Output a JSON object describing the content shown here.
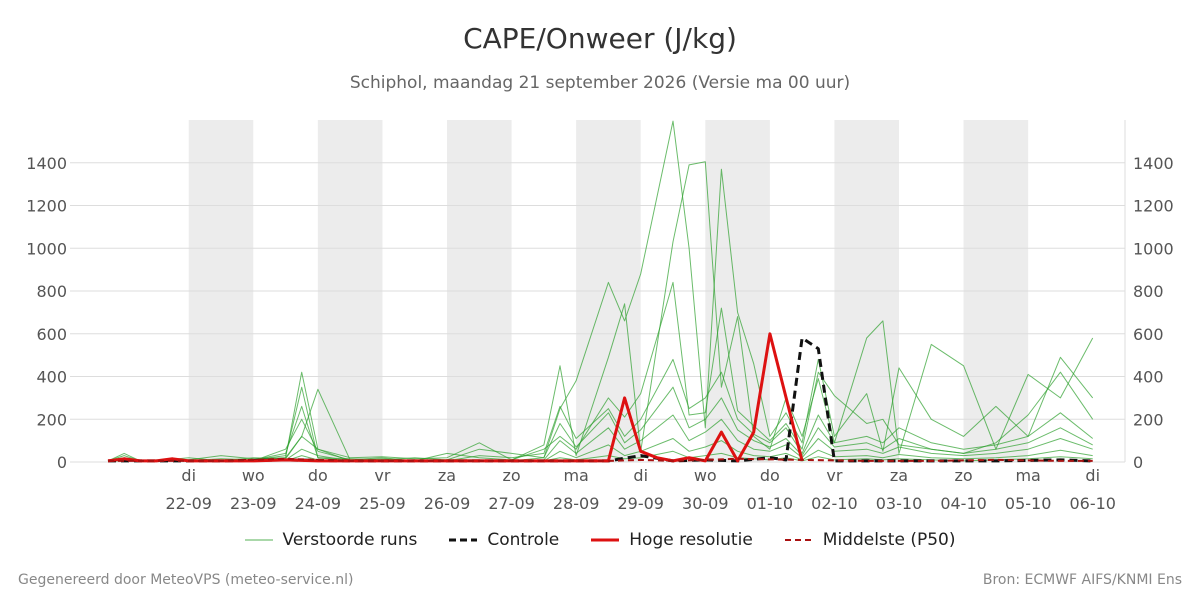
{
  "title": "CAPE/Onweer (J/kg)",
  "subtitle": "Schiphol, maandag 21 september 2026 (Versie ma 00 uur)",
  "footer": {
    "left": "Gegenereerd door MeteoVPS (meteo-service.nl)",
    "right": "Bron: ECMWF AIFS/KNMI Ens"
  },
  "colors": {
    "ensemble": "#2ca02c",
    "control": "#111111",
    "high_res": "#dd1111",
    "median": "#aa1111",
    "night_band": "#ececec",
    "grid": "#dddddd"
  },
  "legend": [
    {
      "label": "Verstoorde runs",
      "style": "thin-green"
    },
    {
      "label": "Controle",
      "style": "black-dashed"
    },
    {
      "label": "Hoge resolutie",
      "style": "red-thick"
    },
    {
      "label": "Middelste (P50)",
      "style": "darkred-dashed"
    }
  ],
  "chart_data": {
    "type": "line",
    "x_unit": "days since 2026-09-21 00:00",
    "xlim": [
      -0.75,
      15.0
    ],
    "ylim": [
      0,
      1600
    ],
    "y_ticks": [
      0,
      200,
      400,
      600,
      800,
      1000,
      1200,
      1400
    ],
    "grid": true,
    "legend_position": "bottom",
    "night_bands": [
      [
        0.5,
        1.5
      ],
      [
        2.5,
        3.5
      ],
      [
        4.5,
        5.5
      ],
      [
        6.5,
        7.5
      ],
      [
        8.5,
        9.5
      ],
      [
        10.5,
        11.5
      ],
      [
        12.5,
        13.5
      ]
    ],
    "x_ticks": [
      {
        "x": 0.5,
        "day": "di",
        "date": "22-09"
      },
      {
        "x": 1.5,
        "day": "wo",
        "date": "23-09"
      },
      {
        "x": 2.5,
        "day": "do",
        "date": "24-09"
      },
      {
        "x": 3.5,
        "day": "vr",
        "date": "25-09"
      },
      {
        "x": 4.5,
        "day": "za",
        "date": "26-09"
      },
      {
        "x": 5.5,
        "day": "zo",
        "date": "27-09"
      },
      {
        "x": 6.5,
        "day": "ma",
        "date": "28-09"
      },
      {
        "x": 7.5,
        "day": "di",
        "date": "29-09"
      },
      {
        "x": 8.5,
        "day": "wo",
        "date": "30-09"
      },
      {
        "x": 9.5,
        "day": "do",
        "date": "01-10"
      },
      {
        "x": 10.5,
        "day": "vr",
        "date": "02-10"
      },
      {
        "x": 11.5,
        "day": "za",
        "date": "03-10"
      },
      {
        "x": 12.5,
        "day": "zo",
        "date": "04-10"
      },
      {
        "x": 13.5,
        "day": "ma",
        "date": "05-10"
      },
      {
        "x": 14.5,
        "day": "di",
        "date": "06-10"
      }
    ],
    "series": [
      {
        "name": "Verstoorde runs",
        "style": "ensemble",
        "x": [
          -0.75,
          -0.5,
          -0.25,
          0,
          0.5,
          1,
          1.5,
          2,
          2.25,
          2.5,
          3,
          3.5,
          4,
          4.5,
          5,
          5.5,
          6,
          6.25,
          6.5,
          7,
          7.25,
          7.5,
          8,
          8.25,
          8.5,
          8.75,
          9,
          9.25,
          9.5,
          9.75,
          10,
          10.25,
          10.5,
          11,
          11.25,
          11.5,
          12,
          12.5,
          13,
          13.5,
          14,
          14.5
        ],
        "values": [
          5,
          40,
          5,
          5,
          10,
          30,
          15,
          20,
          420,
          60,
          20,
          25,
          15,
          20,
          90,
          10,
          80,
          450,
          30,
          490,
          740,
          50,
          1030,
          1390,
          1405,
          350,
          680,
          120,
          60,
          300,
          120,
          390,
          90,
          580,
          660,
          40,
          550,
          450,
          60,
          410,
          300,
          580
        ]
      },
      {
        "name": "Verstoorde runs",
        "style": "ensemble",
        "x": [
          -0.75,
          -0.5,
          -0.25,
          0,
          0.5,
          1,
          1.5,
          2,
          2.25,
          2.5,
          3,
          3.5,
          4,
          4.5,
          5,
          5.5,
          6,
          6.25,
          6.5,
          7,
          7.25,
          7.5,
          8,
          8.25,
          8.5,
          8.75,
          9,
          9.25,
          9.5,
          9.75,
          10,
          10.25,
          10.5,
          11,
          11.25,
          11.5,
          12,
          12.5,
          13,
          13.5,
          14,
          14.5
        ],
        "values": [
          5,
          20,
          5,
          10,
          5,
          15,
          10,
          30,
          350,
          20,
          15,
          10,
          20,
          10,
          60,
          40,
          20,
          250,
          380,
          840,
          660,
          880,
          1595,
          1000,
          160,
          1370,
          700,
          460,
          120,
          230,
          90,
          480,
          120,
          320,
          50,
          440,
          200,
          120,
          260,
          120,
          490,
          300
        ]
      },
      {
        "name": "Verstoorde runs",
        "style": "ensemble",
        "x": [
          -0.75,
          -0.5,
          -0.25,
          0,
          0.5,
          1,
          1.5,
          2,
          2.25,
          2.5,
          3,
          3.5,
          4,
          4.5,
          5,
          5.5,
          6,
          6.25,
          6.5,
          7,
          7.25,
          7.5,
          8,
          8.25,
          8.5,
          8.75,
          9,
          9.25,
          9.5,
          9.75,
          10,
          10.25,
          10.5,
          11,
          11.25,
          11.5,
          12,
          12.5,
          13,
          13.5,
          14,
          14.5
        ],
        "values": [
          5,
          10,
          5,
          5,
          20,
          5,
          20,
          15,
          120,
          340,
          10,
          20,
          5,
          40,
          20,
          10,
          60,
          120,
          60,
          300,
          210,
          320,
          840,
          220,
          230,
          720,
          240,
          170,
          100,
          180,
          60,
          420,
          310,
          180,
          200,
          80,
          60,
          40,
          90,
          220,
          420,
          200
        ]
      },
      {
        "name": "Verstoorde runs",
        "style": "ensemble",
        "x": [
          -0.75,
          -0.5,
          -0.25,
          0,
          0.5,
          1,
          1.5,
          2,
          2.25,
          2.5,
          3,
          3.5,
          4,
          4.5,
          5,
          5.5,
          6,
          6.25,
          6.5,
          7,
          7.25,
          7.5,
          8,
          8.25,
          8.5,
          8.75,
          9,
          9.25,
          9.5,
          9.75,
          10,
          10.25,
          10.5,
          11,
          11.25,
          11.5,
          12,
          12.5,
          13,
          13.5,
          14,
          14.5
        ],
        "values": [
          5,
          30,
          5,
          5,
          5,
          10,
          5,
          60,
          200,
          50,
          10,
          5,
          10,
          5,
          30,
          20,
          40,
          260,
          110,
          250,
          120,
          200,
          480,
          250,
          300,
          420,
          200,
          130,
          90,
          160,
          40,
          220,
          90,
          120,
          90,
          160,
          90,
          60,
          80,
          120,
          230,
          110
        ]
      },
      {
        "name": "Verstoorde runs",
        "style": "ensemble",
        "x": [
          -0.75,
          -0.5,
          -0.25,
          0,
          0.5,
          1,
          1.5,
          2,
          2.25,
          2.5,
          3,
          3.5,
          4,
          4.5,
          5,
          5.5,
          6,
          6.25,
          6.5,
          7,
          7.25,
          7.5,
          8,
          8.25,
          8.5,
          8.75,
          9,
          9.25,
          9.5,
          9.75,
          10,
          10.25,
          10.5,
          11,
          11.25,
          11.5,
          12,
          12.5,
          13,
          13.5,
          14,
          14.5
        ],
        "values": [
          5,
          15,
          5,
          5,
          10,
          5,
          10,
          40,
          260,
          20,
          5,
          15,
          5,
          10,
          10,
          5,
          20,
          180,
          70,
          230,
          90,
          150,
          350,
          160,
          200,
          300,
          150,
          100,
          70,
          110,
          30,
          160,
          70,
          90,
          60,
          110,
          60,
          40,
          60,
          90,
          160,
          80
        ]
      },
      {
        "name": "Verstoorde runs",
        "style": "ensemble",
        "x": [
          -0.75,
          -0.5,
          -0.25,
          0,
          0.5,
          1,
          1.5,
          2,
          2.25,
          2.5,
          3,
          3.5,
          4,
          4.5,
          5,
          5.5,
          6,
          6.25,
          6.5,
          7,
          7.25,
          7.5,
          8,
          8.25,
          8.5,
          8.75,
          9,
          9.25,
          9.5,
          9.75,
          10,
          10.25,
          10.5,
          11,
          11.25,
          11.5,
          12,
          12.5,
          13,
          13.5,
          14,
          14.5
        ],
        "values": [
          5,
          10,
          5,
          5,
          5,
          5,
          5,
          20,
          120,
          60,
          5,
          10,
          5,
          5,
          5,
          5,
          10,
          100,
          40,
          160,
          60,
          100,
          220,
          100,
          140,
          200,
          100,
          60,
          50,
          80,
          20,
          110,
          50,
          60,
          40,
          70,
          40,
          30,
          40,
          60,
          110,
          60
        ]
      },
      {
        "name": "Verstoorde runs",
        "style": "ensemble",
        "x": [
          -0.75,
          -0.5,
          -0.25,
          0,
          0.5,
          1,
          1.5,
          2,
          2.25,
          2.5,
          3,
          3.5,
          4,
          4.5,
          5,
          5.5,
          6,
          6.25,
          6.5,
          7,
          7.25,
          7.5,
          8,
          8.25,
          8.5,
          8.75,
          9,
          9.25,
          9.5,
          9.75,
          10,
          10.25,
          10.5,
          11,
          11.25,
          11.5,
          12,
          12.5,
          13,
          13.5,
          14,
          14.5
        ],
        "values": [
          5,
          5,
          5,
          5,
          5,
          5,
          5,
          10,
          60,
          30,
          5,
          5,
          5,
          5,
          5,
          5,
          5,
          50,
          20,
          80,
          30,
          50,
          110,
          50,
          70,
          100,
          50,
          30,
          25,
          40,
          10,
          55,
          25,
          30,
          20,
          35,
          20,
          15,
          20,
          30,
          55,
          30
        ]
      },
      {
        "name": "Verstoorde runs",
        "style": "ensemble",
        "x": [
          -0.75,
          -0.5,
          -0.25,
          0,
          0.5,
          1,
          1.5,
          2,
          2.25,
          2.5,
          3,
          3.5,
          4,
          4.5,
          5,
          5.5,
          6,
          6.25,
          6.5,
          7,
          7.25,
          7.5,
          8,
          8.25,
          8.5,
          8.75,
          9,
          9.25,
          9.5,
          9.75,
          10,
          10.25,
          10.5,
          11,
          11.25,
          11.5,
          12,
          12.5,
          13,
          13.5,
          14,
          14.5
        ],
        "values": [
          5,
          5,
          5,
          5,
          5,
          5,
          5,
          5,
          30,
          10,
          5,
          5,
          5,
          5,
          5,
          5,
          5,
          20,
          10,
          30,
          15,
          20,
          50,
          20,
          30,
          40,
          20,
          15,
          10,
          20,
          5,
          25,
          10,
          15,
          10,
          15,
          10,
          5,
          10,
          15,
          25,
          15
        ]
      },
      {
        "name": "Controle",
        "style": "control",
        "x": [
          -0.75,
          0,
          1,
          2,
          3,
          4,
          5,
          6,
          7,
          7.5,
          8,
          8.5,
          9,
          9.5,
          9.75,
          10,
          10.25,
          10.5,
          11,
          12,
          13,
          14,
          14.5
        ],
        "values": [
          5,
          5,
          5,
          10,
          5,
          5,
          5,
          5,
          5,
          30,
          5,
          10,
          5,
          20,
          10,
          580,
          530,
          5,
          5,
          5,
          5,
          10,
          5
        ]
      },
      {
        "name": "Hoge resolutie",
        "style": "high_res",
        "x": [
          -0.75,
          -0.5,
          -0.25,
          0,
          0.25,
          0.5,
          1,
          1.5,
          2,
          2.5,
          3,
          3.5,
          4,
          4.5,
          5,
          5.5,
          6,
          6.5,
          7,
          7.25,
          7.5,
          7.75,
          8,
          8.25,
          8.5,
          8.75,
          9,
          9.25,
          9.5,
          10
        ],
        "values": [
          5,
          15,
          5,
          5,
          15,
          5,
          5,
          5,
          10,
          5,
          5,
          5,
          5,
          5,
          5,
          5,
          5,
          5,
          5,
          300,
          50,
          20,
          5,
          20,
          5,
          140,
          5,
          140,
          600,
          5
        ]
      },
      {
        "name": "Middelste (P50)",
        "style": "median",
        "x": [
          -0.75,
          0,
          1,
          2,
          3,
          4,
          5,
          6,
          7,
          7.5,
          8,
          9,
          10,
          11,
          12,
          13,
          14,
          14.5
        ],
        "values": [
          5,
          5,
          5,
          15,
          5,
          5,
          5,
          5,
          5,
          10,
          5,
          15,
          10,
          5,
          5,
          10,
          5,
          5
        ]
      }
    ]
  }
}
